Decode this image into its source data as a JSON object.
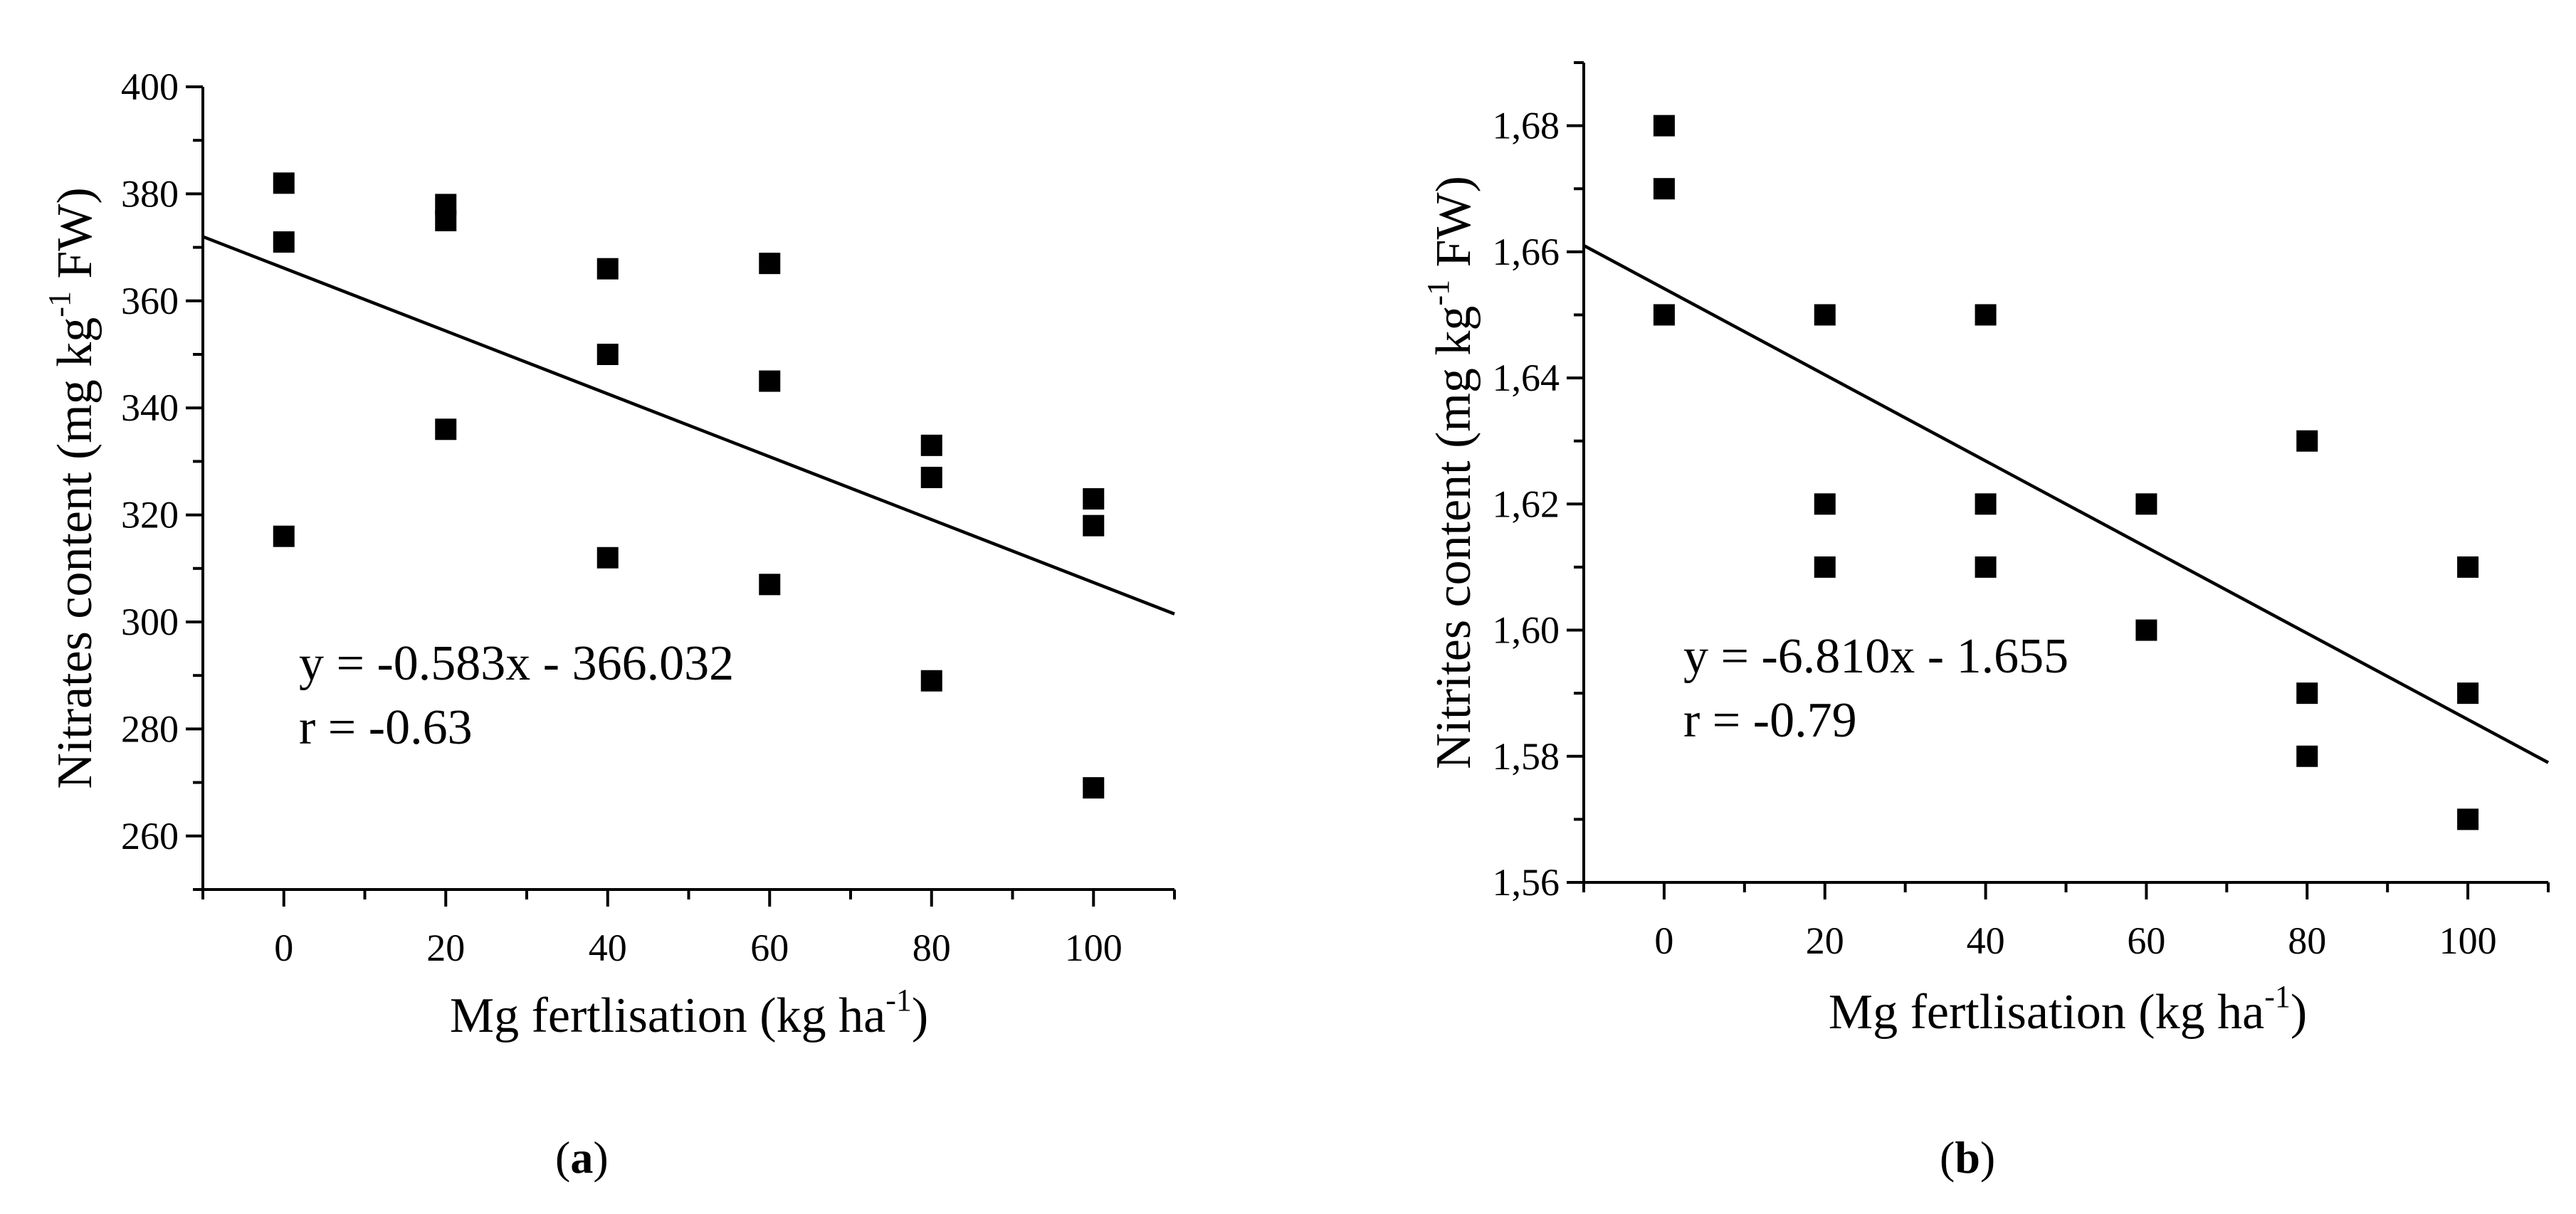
{
  "chart_data": [
    {
      "type": "scatter",
      "panel": "a",
      "xlabel_main": "Mg  fertlisation (kg ha",
      "xlabel_sup": "-1",
      "xlabel_end": ")",
      "ylabel_main": "Nitrates content (mg kg",
      "ylabel_sup": "-1",
      "ylabel_end": " FW)",
      "xlim": [
        -10,
        110
      ],
      "ylim": [
        250,
        400
      ],
      "x_ticks": [
        0,
        20,
        40,
        60,
        80,
        100
      ],
      "x_tick_labels": [
        "0",
        "20",
        "40",
        "60",
        "80",
        "100"
      ],
      "y_ticks": [
        260,
        280,
        300,
        320,
        340,
        360,
        380,
        400
      ],
      "y_tick_labels": [
        "260",
        "280",
        "300",
        "320",
        "340",
        "360",
        "380",
        "400"
      ],
      "points": [
        [
          0,
          382
        ],
        [
          0,
          371
        ],
        [
          0,
          316
        ],
        [
          20,
          378
        ],
        [
          20,
          375
        ],
        [
          20,
          336
        ],
        [
          40,
          366
        ],
        [
          40,
          350
        ],
        [
          40,
          312
        ],
        [
          60,
          367
        ],
        [
          60,
          345
        ],
        [
          60,
          307
        ],
        [
          80,
          333
        ],
        [
          80,
          327
        ],
        [
          80,
          289
        ],
        [
          100,
          323
        ],
        [
          100,
          318
        ],
        [
          100,
          269
        ]
      ],
      "fit_line": {
        "x": [
          -10,
          110
        ],
        "y": [
          372,
          301.5
        ]
      },
      "equation": "y = -0.583x - 366.032",
      "r_text": "r = -0.63",
      "caption": "a"
    },
    {
      "type": "scatter",
      "panel": "b",
      "xlabel_main": "Mg  fertlisation (kg ha",
      "xlabel_sup": "-1",
      "xlabel_end": ")",
      "ylabel_main": "Nitrites content (mg kg",
      "ylabel_sup": "-1",
      "ylabel_end": " FW)",
      "xlim": [
        -10,
        110
      ],
      "ylim": [
        1.56,
        1.69
      ],
      "x_ticks": [
        0,
        20,
        40,
        60,
        80,
        100
      ],
      "x_tick_labels": [
        "0",
        "20",
        "40",
        "60",
        "80",
        "100"
      ],
      "y_ticks": [
        1.56,
        1.58,
        1.6,
        1.62,
        1.64,
        1.66,
        1.68
      ],
      "y_tick_labels": [
        "1,56",
        "1,58",
        "1,60",
        "1,62",
        "1,64",
        "1,66",
        "1,68"
      ],
      "points": [
        [
          0,
          1.68
        ],
        [
          0,
          1.67
        ],
        [
          0,
          1.65
        ],
        [
          20,
          1.65
        ],
        [
          20,
          1.62
        ],
        [
          20,
          1.61
        ],
        [
          40,
          1.65
        ],
        [
          40,
          1.62
        ],
        [
          40,
          1.61
        ],
        [
          60,
          1.62
        ],
        [
          60,
          1.6
        ],
        [
          80,
          1.63
        ],
        [
          80,
          1.59
        ],
        [
          80,
          1.58
        ],
        [
          100,
          1.61
        ],
        [
          100,
          1.59
        ],
        [
          100,
          1.57
        ]
      ],
      "fit_line": {
        "x": [
          -10,
          110
        ],
        "y": [
          1.661,
          1.579
        ]
      },
      "equation": "y = -6.810x - 1.655",
      "r_text": "r = -0.79",
      "caption": "b"
    }
  ]
}
